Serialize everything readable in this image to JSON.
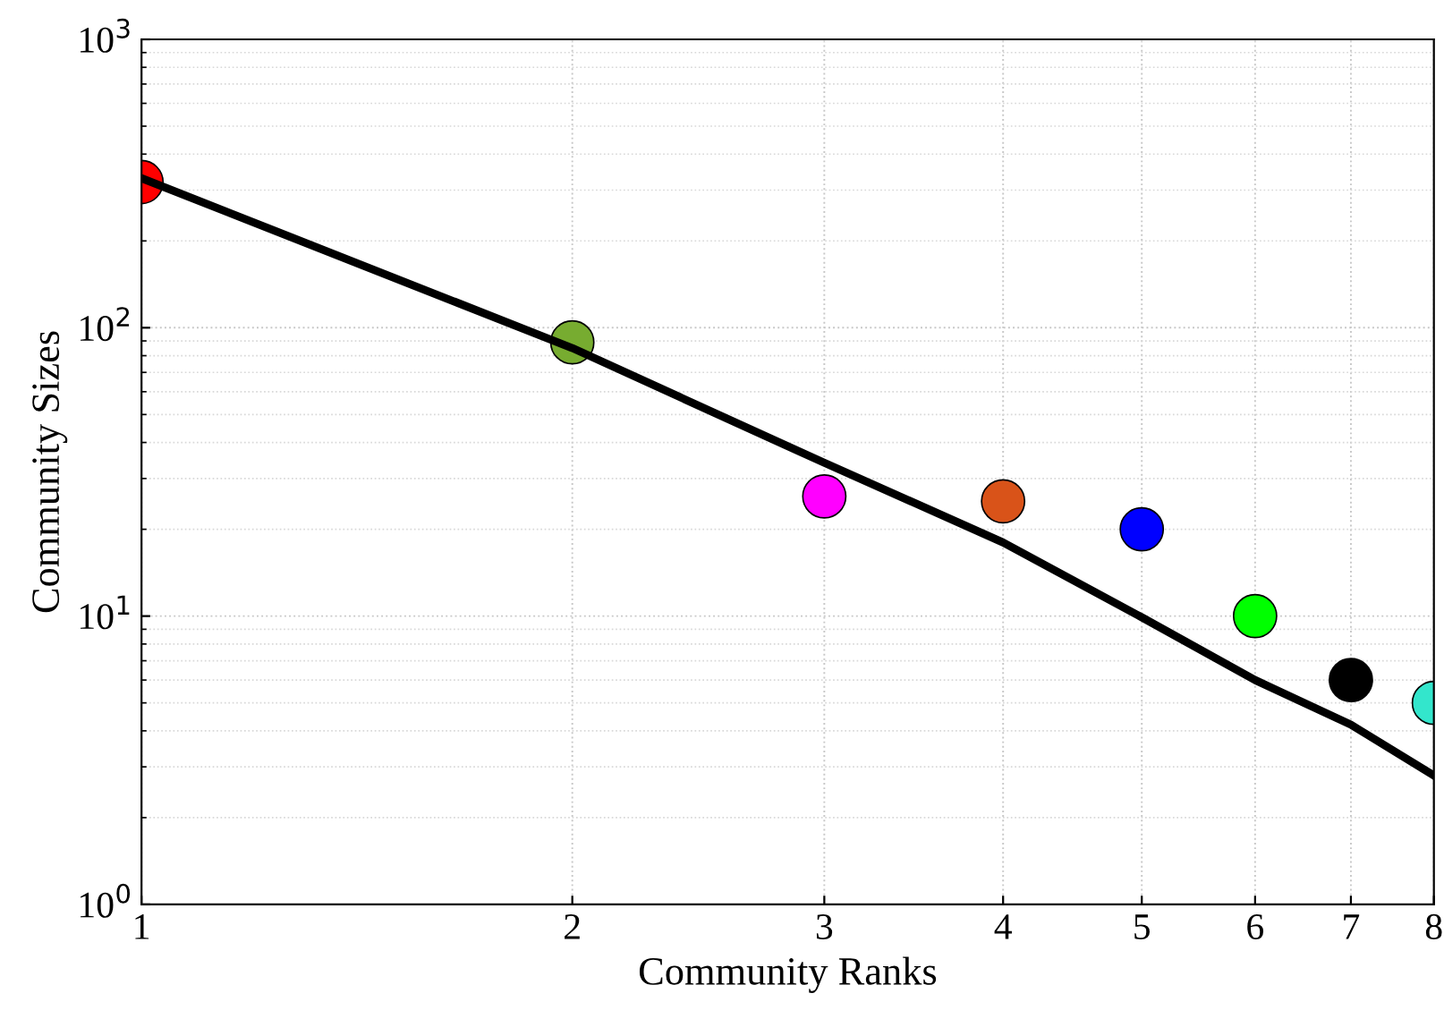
{
  "chart_data": {
    "type": "scatter",
    "xlabel": "Community Ranks",
    "ylabel": "Community Sizes",
    "log": "xy",
    "grid": true,
    "xlim": [
      1,
      8
    ],
    "xticks": [
      1,
      2,
      3,
      4,
      5,
      6,
      7,
      8
    ],
    "ylim": [
      1,
      1000
    ],
    "yticks": [
      {
        "value": 1,
        "label": "10$^{0}$"
      },
      {
        "value": 10,
        "label": "10$^{1}$"
      },
      {
        "value": 100,
        "label": "10$^{2}$"
      },
      {
        "value": 1000,
        "label": "10$^{3}$"
      }
    ],
    "series": [
      {
        "marker": "circle",
        "x": [
          1,
          2,
          3,
          4,
          5,
          6,
          7,
          8
        ],
        "values": [
          320,
          89,
          26,
          25,
          20,
          10,
          6,
          5
        ],
        "colors": [
          "#ff0000",
          "#77ac30",
          "#ff00ff",
          "#d95319",
          "#0000ff",
          "#00ff00",
          "#000000",
          "#33e6cc"
        ]
      },
      {
        "type": "line",
        "color": "#000000",
        "line_style": "solid",
        "x": [
          1,
          2,
          3,
          4,
          5,
          6,
          7,
          8
        ],
        "values": [
          330,
          85,
          34,
          18,
          9.9,
          6,
          4.2,
          2.8
        ]
      }
    ]
  }
}
